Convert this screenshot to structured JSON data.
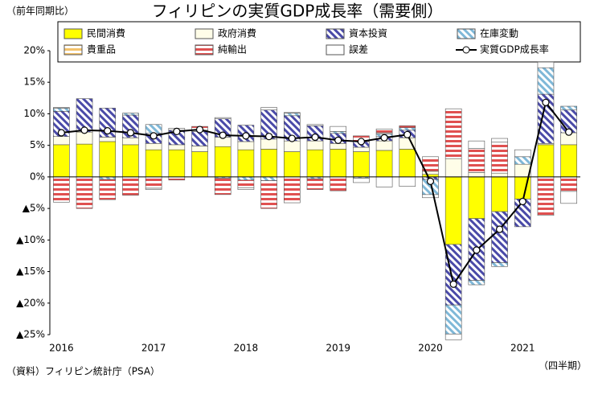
{
  "chart_data": {
    "type": "bar",
    "title": "フィリピンの実質GDP成長率（需要側）",
    "subtitle": "（前年同期比）",
    "source": "（資料）フィリピン統計庁（PSA）",
    "x_label": "（四半期）",
    "stacked": true,
    "categories": [
      "2016",
      null,
      null,
      null,
      "2017",
      null,
      null,
      null,
      "2018",
      null,
      null,
      null,
      "2019",
      null,
      null,
      null,
      "2020",
      null,
      null,
      null,
      "2021",
      null,
      null
    ],
    "ylim": [
      -25,
      20
    ],
    "yticks": [
      {
        "value": 20,
        "label": "20%"
      },
      {
        "value": 15,
        "label": "15%"
      },
      {
        "value": 10,
        "label": "10%"
      },
      {
        "value": 5,
        "label": "5%"
      },
      {
        "value": 0,
        "label": "0%"
      },
      {
        "value": -5,
        "label": "▲5%"
      },
      {
        "value": -10,
        "label": "▲10%"
      },
      {
        "value": -15,
        "label": "▲15%"
      },
      {
        "value": -20,
        "label": "▲20%"
      },
      {
        "value": -25,
        "label": "▲25%"
      }
    ],
    "series": [
      {
        "name": "民間消費",
        "color": "#ffff00",
        "values": [
          5.1,
          5.2,
          5.6,
          5.1,
          4.3,
          4.3,
          4.0,
          4.8,
          4.3,
          4.4,
          4.0,
          4.3,
          4.4,
          4.0,
          4.2,
          4.4,
          0.4,
          -10.7,
          -6.6,
          -5.5,
          -3.5,
          5.1,
          5.1
        ]
      },
      {
        "name": "政府消費",
        "color": "#fffde8",
        "values": [
          1.3,
          1.9,
          0.7,
          1.1,
          1.0,
          0.8,
          0.9,
          1.5,
          1.3,
          1.6,
          1.7,
          1.4,
          0.9,
          0.7,
          1.5,
          1.8,
          0.5,
          2.9,
          0.7,
          0.6,
          2.0,
          0.2,
          1.9
        ]
      },
      {
        "name": "資本投資",
        "color": "#4a4aa8",
        "hatch": "diagonal",
        "values": [
          4.0,
          5.3,
          4.6,
          3.6,
          1.6,
          2.3,
          2.3,
          2.9,
          2.6,
          4.6,
          4.0,
          2.4,
          1.6,
          0.9,
          0.7,
          1.2,
          -0.4,
          -9.6,
          -9.8,
          -8.1,
          -4.4,
          7.8,
          3.6
        ]
      },
      {
        "name": "在庫変動",
        "color": "#7fb8d8",
        "hatch": "diagonal",
        "values": [
          0.5,
          0,
          -0.4,
          0.3,
          1.4,
          0,
          0.2,
          -0.2,
          -0.5,
          -0.6,
          0.4,
          -0.3,
          0.3,
          -0.2,
          0.4,
          0.4,
          -2.4,
          -4.6,
          -0.7,
          -0.6,
          1.2,
          4.2,
          0.6
        ]
      },
      {
        "name": "貴重品",
        "color": "#f5c36a",
        "hatch": "horizontal",
        "values": [
          0,
          0,
          0,
          0,
          0,
          0,
          0,
          0,
          0,
          0,
          0,
          0,
          0,
          0,
          0.2,
          0,
          0,
          0,
          0,
          0,
          0,
          0,
          0
        ]
      },
      {
        "name": "純輸出",
        "color": "#e05050",
        "hatch": "horizontal",
        "values": [
          -4.0,
          -5.0,
          -3.2,
          -2.9,
          -1.8,
          -0.5,
          0.6,
          -2.6,
          -1.2,
          -4.4,
          -4.1,
          -1.7,
          -2.2,
          0.9,
          0.6,
          0.3,
          2.3,
          7.9,
          3.8,
          4.9,
          0,
          -6.1,
          -2.3
        ]
      },
      {
        "name": "誤差",
        "color": "#ffffff",
        "values": [
          0.1,
          0,
          0,
          0,
          -0.2,
          0.3,
          0,
          0.2,
          -0.3,
          0.4,
          0.1,
          0.2,
          0.8,
          -0.7,
          -1.6,
          -1.5,
          -0.5,
          -0.9,
          1.2,
          0.6,
          1.1,
          0.9,
          -1.9
        ]
      },
      {
        "name": "実質GDP成長率",
        "type": "line",
        "color": "#000000",
        "values": [
          7.0,
          7.4,
          7.3,
          7.0,
          6.5,
          7.2,
          7.5,
          6.6,
          6.5,
          6.4,
          6.1,
          6.3,
          5.8,
          5.6,
          6.2,
          6.7,
          -0.7,
          -17.0,
          -11.6,
          -8.3,
          -3.9,
          11.8,
          7.1
        ]
      }
    ]
  }
}
